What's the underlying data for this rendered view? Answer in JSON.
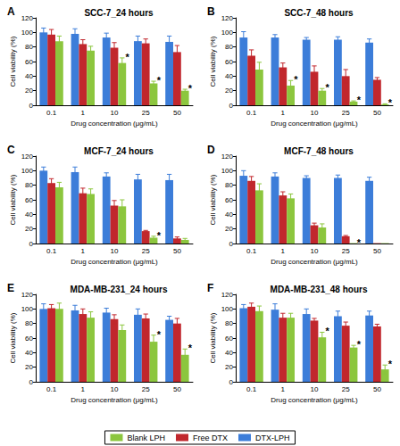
{
  "chart_data": [
    {
      "type": "bar",
      "panel": "A",
      "title": "SCC-7_24 hours",
      "categories": [
        "0.1",
        "1",
        "10",
        "25",
        "50"
      ],
      "xlabel": "Drug concentration (μg/mL)",
      "ylabel": "Cell viability (%)",
      "ylim": [
        0,
        120
      ],
      "yticks": [
        0,
        20,
        40,
        60,
        80,
        100,
        120
      ],
      "series": [
        {
          "name": "Blank LPH",
          "color": "#8cc63e",
          "values": [
            88,
            75,
            58,
            30,
            20
          ],
          "errors": [
            7,
            6,
            7,
            3,
            2
          ],
          "annotations": [
            null,
            null,
            "*",
            "*",
            "*"
          ]
        },
        {
          "name": "Free DTX",
          "color": "#c1272d",
          "values": [
            97,
            84,
            79,
            85,
            73
          ],
          "errors": [
            7,
            6,
            7,
            6,
            9
          ]
        },
        {
          "name": "DTX-LPH",
          "color": "#3c7dd9",
          "values": [
            100,
            98,
            93,
            88,
            87
          ],
          "errors": [
            6,
            7,
            6,
            7,
            8
          ]
        }
      ]
    },
    {
      "type": "bar",
      "panel": "B",
      "title": "SCC-7_48 hours",
      "categories": [
        "0.1",
        "1",
        "10",
        "25",
        "50"
      ],
      "xlabel": "Drug concentration (μg/mL)",
      "ylabel": "Cell viability (%)",
      "ylim": [
        0,
        120
      ],
      "yticks": [
        0,
        20,
        40,
        60,
        80,
        100,
        120
      ],
      "series": [
        {
          "name": "Blank LPH",
          "color": "#8cc63e",
          "values": [
            49,
            27,
            20,
            5,
            1
          ],
          "errors": [
            10,
            7,
            3,
            1,
            1
          ],
          "annotations": [
            null,
            "*",
            "*",
            "*",
            "*"
          ]
        },
        {
          "name": "Free DTX",
          "color": "#c1272d",
          "values": [
            68,
            52,
            46,
            40,
            35
          ],
          "errors": [
            8,
            6,
            8,
            9,
            3
          ]
        },
        {
          "name": "DTX-LPH",
          "color": "#3c7dd9",
          "values": [
            93,
            93,
            90,
            90,
            86
          ],
          "errors": [
            8,
            4,
            3,
            4,
            5
          ]
        }
      ]
    },
    {
      "type": "bar",
      "panel": "C",
      "title": "MCF-7_24 hours",
      "categories": [
        "0.1",
        "1",
        "10",
        "25",
        "50"
      ],
      "xlabel": "Drug concentration (μg/mL)",
      "ylabel": "Cell viability (%)",
      "ylim": [
        0,
        120
      ],
      "yticks": [
        0,
        20,
        40,
        60,
        80,
        100,
        120
      ],
      "series": [
        {
          "name": "Blank LPH",
          "color": "#8cc63e",
          "values": [
            77,
            68,
            51,
            8,
            5
          ],
          "errors": [
            7,
            7,
            9,
            2,
            2
          ],
          "annotations": [
            null,
            null,
            null,
            "*",
            null
          ]
        },
        {
          "name": "Free DTX",
          "color": "#c1272d",
          "values": [
            83,
            69,
            52,
            17,
            7
          ],
          "errors": [
            6,
            7,
            7,
            1,
            2
          ]
        },
        {
          "name": "DTX-LPH",
          "color": "#3c7dd9",
          "values": [
            100,
            98,
            92,
            88,
            87
          ],
          "errors": [
            5,
            7,
            5,
            7,
            8
          ]
        }
      ]
    },
    {
      "type": "bar",
      "panel": "D",
      "title": "MCF-7_48 hours",
      "categories": [
        "0.1",
        "1",
        "10",
        "25",
        "50"
      ],
      "xlabel": "Drug concentration (μg/mL)",
      "ylabel": "Cell viability (%)",
      "ylim": [
        0,
        120
      ],
      "yticks": [
        0,
        20,
        40,
        60,
        80,
        100,
        120
      ],
      "series": [
        {
          "name": "Blank LPH",
          "color": "#8cc63e",
          "values": [
            73,
            62,
            22,
            0.5,
            0.5
          ],
          "errors": [
            9,
            6,
            5,
            0,
            0
          ],
          "annotations": [
            null,
            null,
            null,
            "*",
            null
          ]
        },
        {
          "name": "Free DTX",
          "color": "#c1272d",
          "values": [
            86,
            66,
            25,
            10,
            0.5
          ],
          "errors": [
            6,
            5,
            3,
            1,
            0
          ]
        },
        {
          "name": "DTX-LPH",
          "color": "#3c7dd9",
          "values": [
            93,
            92,
            90,
            90,
            86
          ],
          "errors": [
            7,
            5,
            3,
            4,
            5
          ]
        }
      ]
    },
    {
      "type": "bar",
      "panel": "E",
      "title": "MDA-MB-231_24 hours",
      "categories": [
        "0.1",
        "1",
        "10",
        "25",
        "50"
      ],
      "xlabel": "Drug concentration (μg/mL)",
      "ylabel": "Cell viability (%)",
      "ylim": [
        0,
        120
      ],
      "yticks": [
        0,
        20,
        40,
        60,
        80,
        100,
        120
      ],
      "series": [
        {
          "name": "Blank LPH",
          "color": "#8cc63e",
          "values": [
            100,
            88,
            71,
            55,
            37
          ],
          "errors": [
            8,
            8,
            7,
            9,
            8
          ],
          "annotations": [
            null,
            null,
            null,
            "*",
            "*"
          ]
        },
        {
          "name": "Free DTX",
          "color": "#c1272d",
          "values": [
            101,
            93,
            86,
            87,
            80
          ],
          "errors": [
            5,
            7,
            6,
            6,
            7
          ]
        },
        {
          "name": "DTX-LPH",
          "color": "#3c7dd9",
          "values": [
            100,
            98,
            95,
            92,
            85
          ],
          "errors": [
            7,
            7,
            6,
            8,
            5
          ]
        }
      ]
    },
    {
      "type": "bar",
      "panel": "F",
      "title": "MDA-MB-231_48 hours",
      "categories": [
        "0.1",
        "1",
        "10",
        "25",
        "50"
      ],
      "xlabel": "Drug concentration (μg/mL)",
      "ylabel": "Cell viability (%)",
      "ylim": [
        0,
        120
      ],
      "yticks": [
        0,
        20,
        40,
        60,
        80,
        100,
        120
      ],
      "legend": "bottom",
      "series": [
        {
          "name": "Blank LPH",
          "color": "#8cc63e",
          "values": [
            97,
            88,
            61,
            47,
            17
          ],
          "errors": [
            7,
            6,
            7,
            3,
            6
          ],
          "annotations": [
            null,
            null,
            "*",
            "*",
            "*"
          ]
        },
        {
          "name": "Free DTX",
          "color": "#c1272d",
          "values": [
            103,
            88,
            84,
            77,
            76
          ],
          "errors": [
            5,
            6,
            3,
            5,
            3
          ]
        },
        {
          "name": "DTX-LPH",
          "color": "#3c7dd9",
          "values": [
            101,
            99,
            93,
            90,
            91
          ],
          "errors": [
            5,
            8,
            7,
            7,
            6
          ]
        }
      ]
    }
  ]
}
